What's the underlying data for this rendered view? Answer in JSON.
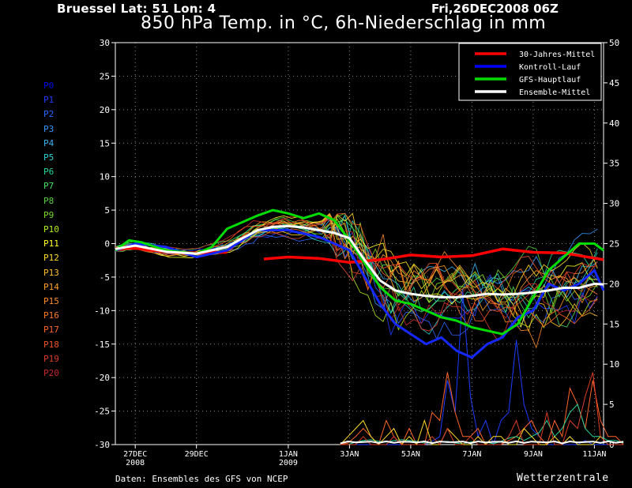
{
  "header": {
    "station": "Bruessel  Lat: 51 Lon: 4",
    "run": "Fri,26DEC2008 06Z",
    "title": "850 hPa Temp. in °C, 6h-Niederschlag in mm"
  },
  "footer": {
    "source": "Daten: Ensembles des GFS von NCEP",
    "brand": "Wetterzentrale"
  },
  "members": [
    {
      "label": "P0",
      "color": "#0000e6"
    },
    {
      "label": "P1",
      "color": "#1e3cff"
    },
    {
      "label": "P2",
      "color": "#2868ff"
    },
    {
      "label": "P3",
      "color": "#3296ff"
    },
    {
      "label": "P4",
      "color": "#3cb4f0"
    },
    {
      "label": "P5",
      "color": "#2ad2d2"
    },
    {
      "label": "P6",
      "color": "#28d79a"
    },
    {
      "label": "P7",
      "color": "#46e164"
    },
    {
      "label": "P8",
      "color": "#5ad23c"
    },
    {
      "label": "P9",
      "color": "#78dc28"
    },
    {
      "label": "P10",
      "color": "#b4f01e"
    },
    {
      "label": "P11",
      "color": "#ffff28"
    },
    {
      "label": "P12",
      "color": "#ffdc28"
    },
    {
      "label": "P13",
      "color": "#ffbe28"
    },
    {
      "label": "P14",
      "color": "#ffa028"
    },
    {
      "label": "P15",
      "color": "#ff8c28"
    },
    {
      "label": "P16",
      "color": "#ff7828"
    },
    {
      "label": "P17",
      "color": "#ff6428"
    },
    {
      "label": "P18",
      "color": "#f05028"
    },
    {
      "label": "P19",
      "color": "#dc3c28"
    },
    {
      "label": "P20",
      "color": "#c82828"
    }
  ],
  "chart_data": {
    "type": "line",
    "x_tick_labels": [
      "27DEC\n2008",
      "29DEC",
      "1JAN\n2009",
      "3JAN",
      "5JAN",
      "7JAN",
      "9JAN",
      "11JAN"
    ],
    "x_tick_days": [
      1,
      3,
      6,
      8,
      10,
      12,
      14,
      16
    ],
    "x_range_days": [
      0.35,
      16.3
    ],
    "ylim_left": [
      -30,
      30
    ],
    "ylim_right": [
      0,
      50
    ],
    "yticks_left": [
      -30,
      -25,
      -20,
      -15,
      -10,
      -5,
      0,
      5,
      10,
      15,
      20,
      25,
      30
    ],
    "yticks_right": [
      0,
      5,
      10,
      15,
      20,
      25,
      30,
      35,
      40,
      45,
      50
    ],
    "grid": true,
    "legend_position": "top-right",
    "legend": [
      {
        "name": "30-Jahres-Mittel",
        "color": "#ff0000"
      },
      {
        "name": "Kontroll-Lauf",
        "color": "#0000ff"
      },
      {
        "name": "GFS-Hauptlauf",
        "color": "#00dc00"
      },
      {
        "name": "Ensemble-Mittel",
        "color": "#ffffff"
      }
    ],
    "series": [
      {
        "name": "30-Jahres-Mittel",
        "color": "#ff0000",
        "width": 3.5,
        "segments": [
          {
            "x": [
              0.35,
              1.0,
              2.0,
              3.0,
              4.0
            ],
            "y": [
              -0.8,
              -0.7,
              -1.2,
              -1.4,
              -1.3
            ]
          },
          {
            "x": [
              5.2,
              6.0,
              7.0,
              8.0,
              9.0,
              10.0,
              11.0,
              12.0,
              13.0,
              14.0,
              15.0,
              16.3
            ],
            "y": [
              -2.3,
              -2.0,
              -2.2,
              -2.8,
              -2.4,
              -1.7,
              -2.0,
              -1.8,
              -0.8,
              -1.3,
              -1.4,
              -2.4
            ]
          }
        ]
      },
      {
        "name": "Kontroll-Lauf",
        "color": "#1428ff",
        "width": 3,
        "x": [
          0.35,
          1,
          2,
          3,
          4,
          5,
          6,
          7,
          8,
          8.5,
          9,
          9.5,
          10,
          10.5,
          11,
          11.5,
          12,
          12.5,
          13,
          13.5,
          14,
          14.5,
          15,
          15.5,
          16,
          16.3
        ],
        "y": [
          -1,
          0,
          -0.5,
          -2,
          -1,
          2,
          2,
          1,
          -1,
          -5,
          -9,
          -12,
          -13.5,
          -15,
          -14,
          -16,
          -17,
          -15,
          -14,
          -11,
          -10,
          -6,
          -7,
          -6,
          -4,
          -7
        ]
      },
      {
        "name": "GFS-Hauptlauf",
        "color": "#00dc00",
        "width": 3,
        "x": [
          0.35,
          0.8,
          1.2,
          2,
          3,
          3.5,
          4,
          4.5,
          5,
          5.5,
          6,
          6.5,
          7,
          7.5,
          8,
          8.5,
          9,
          9.5,
          10,
          10.5,
          11,
          11.5,
          12,
          12.5,
          13,
          13.5,
          14,
          14.5,
          15,
          15.5,
          16,
          16.3
        ],
        "y": [
          -1,
          0.5,
          0.2,
          -1.0,
          -1.5,
          -0.5,
          2.2,
          3.2,
          4.2,
          5.0,
          4.5,
          3.8,
          4.5,
          3.5,
          0.5,
          -3,
          -6.5,
          -8.5,
          -9,
          -10,
          -11,
          -11.5,
          -12.5,
          -13,
          -13.5,
          -12,
          -8,
          -4,
          -2,
          0,
          0,
          -1
        ]
      },
      {
        "name": "Ensemble-Mittel",
        "color": "#ffffff",
        "width": 3,
        "x": [
          0.35,
          1,
          2,
          3,
          4,
          4.5,
          5,
          5.5,
          6,
          6.5,
          7,
          7.5,
          8,
          8.5,
          9,
          9.5,
          10,
          10.5,
          11,
          11.5,
          12,
          12.5,
          13,
          13.5,
          14,
          14.5,
          15,
          15.5,
          16,
          16.3
        ],
        "y": [
          -0.8,
          -0.3,
          -1.2,
          -1.5,
          -0.5,
          0.8,
          2.0,
          2.5,
          2.6,
          2.4,
          2.0,
          1.6,
          0.8,
          -2.5,
          -5.5,
          -7.0,
          -7.5,
          -7.8,
          -8.0,
          -8.0,
          -7.8,
          -7.5,
          -7.6,
          -7.5,
          -7.3,
          -7.0,
          -6.6,
          -6.6,
          -6.0,
          -6.1
        ]
      }
    ],
    "precip": {
      "ylim": [
        0,
        50
      ],
      "x_start_day": 7.7,
      "x_step_days": 0.25,
      "spikes": [
        {
          "color": "#1e3cff",
          "values": [
            0,
            0,
            0,
            0,
            0,
            0,
            0,
            0,
            0,
            0,
            0,
            0,
            0.4,
            1,
            8,
            4,
            19,
            6,
            1,
            3,
            0,
            3,
            4,
            13,
            5,
            2,
            1,
            0,
            0,
            0,
            0,
            0,
            0.5,
            0,
            0,
            0,
            0,
            0
          ]
        },
        {
          "color": "#ff6428",
          "values": [
            0,
            0.2,
            1,
            2,
            1,
            0,
            3,
            1,
            0,
            2,
            0,
            0,
            4,
            3,
            9,
            4,
            1,
            1,
            2,
            0,
            0,
            0,
            0.5,
            1,
            2,
            3,
            1,
            0,
            3,
            1,
            7,
            5,
            2,
            8,
            3,
            1,
            1,
            0
          ]
        },
        {
          "color": "#28d79a",
          "values": [
            0,
            0,
            0.3,
            0.5,
            0.6,
            0.4,
            0.3,
            0.5,
            0.6,
            0.5,
            0.4,
            0.2,
            0.2,
            0.3,
            0.4,
            0.2,
            0.1,
            0.3,
            0.4,
            0.3,
            0.1,
            0.4,
            0.8,
            1,
            0.5,
            1,
            1.5,
            3,
            1,
            2,
            4,
            5,
            2,
            1,
            1,
            0.5,
            0.5,
            0.2
          ]
        },
        {
          "color": "#ffdc28",
          "values": [
            0,
            1,
            2,
            3,
            1,
            0,
            1,
            2,
            0,
            1,
            0,
            3,
            0,
            0,
            2,
            1,
            0,
            0,
            1,
            0,
            1,
            1,
            0,
            0,
            2,
            1,
            0,
            0,
            1,
            0,
            1,
            0,
            0,
            0,
            1,
            0,
            0,
            0
          ]
        },
        {
          "color": "#dc3c28",
          "values": [
            0,
            0,
            0,
            1,
            0,
            0,
            0,
            1,
            0,
            0,
            0,
            0,
            1,
            0,
            2,
            0,
            0,
            1,
            0,
            0,
            0,
            0,
            1,
            3,
            0,
            0,
            0,
            4,
            0,
            0,
            3,
            2,
            6,
            9,
            1,
            0,
            0,
            0
          ]
        }
      ]
    }
  }
}
